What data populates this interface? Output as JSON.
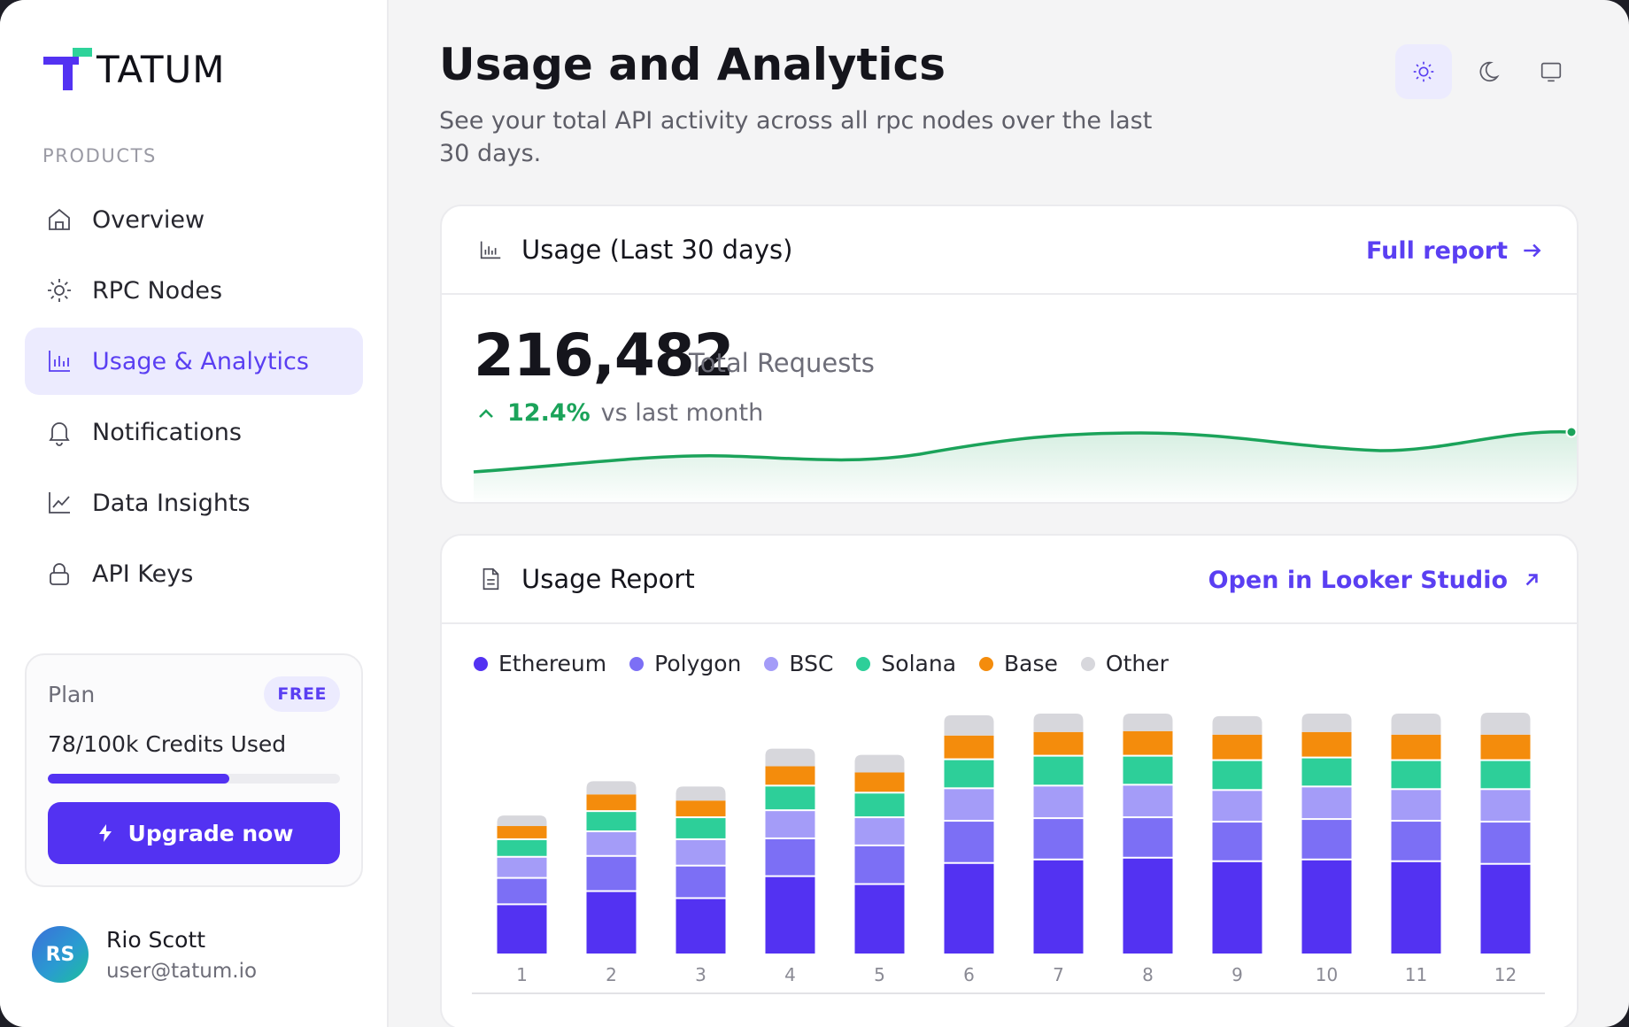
{
  "brand": {
    "name": "TATUM",
    "accent": "#5332f2",
    "logo_green": "#2ed39a"
  },
  "sidebar": {
    "section_label": "PRODUCTS",
    "items": [
      {
        "label": "Overview",
        "icon": "home-icon",
        "active": false
      },
      {
        "label": "RPC Nodes",
        "icon": "sun-icon",
        "active": false
      },
      {
        "label": "Usage & Analytics",
        "icon": "bar-chart-icon",
        "active": true
      },
      {
        "label": "Notifications",
        "icon": "bell-icon",
        "active": false
      },
      {
        "label": "Data Insights",
        "icon": "line-chart-icon",
        "active": false
      },
      {
        "label": "API Keys",
        "icon": "lock-icon",
        "active": false
      }
    ],
    "plan": {
      "title": "Plan",
      "badge": "FREE",
      "credits_text": "78/100k Credits Used",
      "progress_fraction": 0.62,
      "upgrade_label": "Upgrade now"
    },
    "user": {
      "initials": "RS",
      "name": "Rio Scott",
      "email": "user@tatum.io"
    }
  },
  "header": {
    "title": "Usage and Analytics",
    "subtitle": "See your total API activity across all rpc nodes over the last 30 days.",
    "theme_options": [
      {
        "icon": "sun-icon",
        "active": true
      },
      {
        "icon": "moon-icon",
        "active": false
      },
      {
        "icon": "monitor-icon",
        "active": false
      }
    ]
  },
  "usage_card": {
    "title": "Usage (Last 30 days)",
    "link_label": "Full report",
    "total": "216,482",
    "total_label": "Total Requests",
    "delta": "12.4%",
    "delta_label": "vs last month",
    "trend_color": "#1ba35a"
  },
  "report_card": {
    "title": "Usage Report",
    "link_label": "Open in Looker Studio"
  },
  "chart_data": {
    "type": "bar",
    "stacked": true,
    "categories": [
      "1",
      "2",
      "3",
      "4",
      "5",
      "6",
      "7",
      "8",
      "9",
      "10",
      "11",
      "12"
    ],
    "series": [
      {
        "name": "Ethereum",
        "color": "#5332f2",
        "values": [
          55,
          70,
          62,
          87,
          78,
          102,
          106,
          108,
          104,
          106,
          104,
          101
        ]
      },
      {
        "name": "Polygon",
        "color": "#7c6ff5",
        "values": [
          30,
          40,
          37,
          43,
          44,
          48,
          47,
          46,
          45,
          46,
          46,
          48
        ]
      },
      {
        "name": "BSC",
        "color": "#a49cf8",
        "values": [
          24,
          28,
          30,
          32,
          32,
          37,
          37,
          37,
          36,
          37,
          36,
          37
        ]
      },
      {
        "name": "Solana",
        "color": "#2dcf99",
        "values": [
          20,
          23,
          25,
          28,
          28,
          33,
          34,
          33,
          34,
          33,
          33,
          33
        ]
      },
      {
        "name": "Base",
        "color": "#f48c0c",
        "values": [
          16,
          20,
          20,
          23,
          24,
          28,
          28,
          29,
          30,
          30,
          30,
          30
        ]
      },
      {
        "name": "Other",
        "color": "#d7d7dc",
        "values": [
          12,
          15,
          16,
          20,
          20,
          23,
          21,
          20,
          21,
          21,
          24,
          25
        ]
      }
    ],
    "ylim": [
      0,
      280
    ],
    "grid": false,
    "legend": "top-left"
  }
}
